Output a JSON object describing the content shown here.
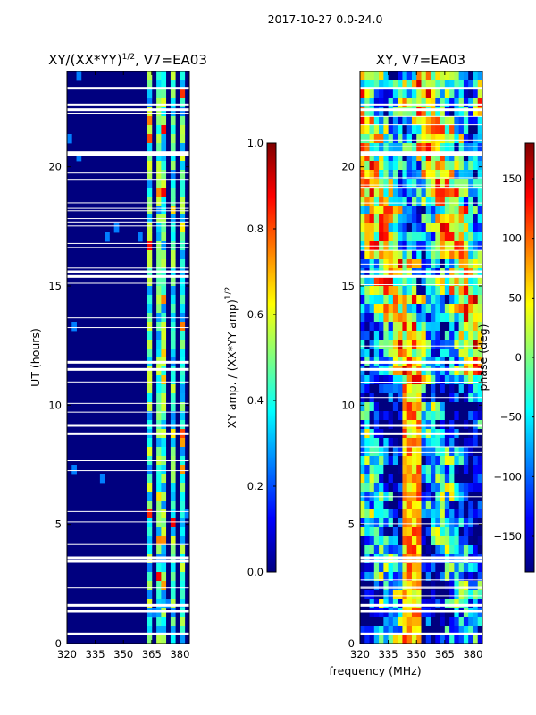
{
  "suptitle": "2017-10-27 0.0-24.0",
  "colors": {
    "jet": [
      "#00007f",
      "#0000ff",
      "#007fff",
      "#00ffff",
      "#7fff7f",
      "#ffff00",
      "#ff7f00",
      "#ff0000",
      "#7f0000"
    ],
    "gap": "#ffffff",
    "axis": "#000000"
  },
  "chart_data": [
    {
      "type": "heatmap",
      "name": "amplitude_ratio",
      "title_main": "XY/(XX*YY)",
      "title_exp": "1/2",
      "title_suffix": ", V7=EA03",
      "xlabel": "",
      "ylabel": "UT (hours)",
      "xlim": [
        320,
        385
      ],
      "ylim": [
        0,
        24
      ],
      "xticks": [
        "320",
        "335",
        "350",
        "365",
        "380"
      ],
      "xtick_values": [
        320,
        335,
        350,
        365,
        380
      ],
      "yticks": [
        "0",
        "5",
        "10",
        "15",
        "20"
      ],
      "ytick_values": [
        0,
        5,
        10,
        15,
        20
      ],
      "colorbar": {
        "label_main": "XY amp. / (XX*YY amp)",
        "label_exp": "1/2",
        "range": [
          0.0,
          1.0
        ],
        "ticks": [
          "0.0",
          "0.2",
          "0.4",
          "0.6",
          "0.8",
          "1.0"
        ],
        "tick_values": [
          0.0,
          0.2,
          0.4,
          0.6,
          0.8,
          1.0
        ]
      },
      "active_freq_bands_mhz": [
        [
          363,
          366
        ],
        [
          368,
          372
        ],
        [
          374,
          377
        ],
        [
          379,
          382
        ]
      ],
      "gap_hours": [
        0.4,
        1.35,
        1.6,
        3.45,
        3.6,
        8.8,
        9.15,
        11.5,
        11.8,
        15.4,
        15.6,
        20.5,
        20.6,
        22.4,
        22.6,
        23.3
      ]
    },
    {
      "type": "heatmap",
      "name": "xy_phase",
      "title_main": "XY, V7=EA03",
      "xlabel": "frequency (MHz)",
      "ylabel": "",
      "xlim": [
        320,
        385
      ],
      "ylim": [
        0,
        24
      ],
      "xticks": [
        "320",
        "335",
        "350",
        "365",
        "380"
      ],
      "xtick_values": [
        320,
        335,
        350,
        365,
        380
      ],
      "yticks": [
        "0",
        "5",
        "10",
        "15",
        "20"
      ],
      "ytick_values": [
        0,
        5,
        10,
        15,
        20
      ],
      "colorbar": {
        "label": "phase (deg)",
        "range": [
          -180,
          180
        ],
        "ticks": [
          "−150",
          "−100",
          "−50",
          "0",
          "50",
          "100",
          "150"
        ],
        "tick_values": [
          -150,
          -100,
          -50,
          0,
          50,
          100,
          150
        ]
      },
      "gap_hours": [
        0.4,
        1.35,
        1.6,
        3.45,
        3.6,
        8.8,
        9.15,
        11.5,
        11.8,
        15.4,
        15.6,
        20.5,
        20.6,
        22.4,
        22.6,
        23.3
      ]
    }
  ]
}
